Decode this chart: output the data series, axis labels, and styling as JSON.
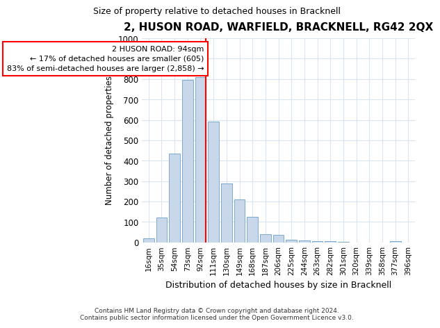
{
  "title": "2, HUSON ROAD, WARFIELD, BRACKNELL, RG42 2QX",
  "subtitle": "Size of property relative to detached houses in Bracknell",
  "xlabel": "Distribution of detached houses by size in Bracknell",
  "ylabel": "Number of detached properties",
  "bar_color": "#c8d8ea",
  "bar_edge_color": "#7aabcf",
  "categories": [
    "16sqm",
    "35sqm",
    "54sqm",
    "73sqm",
    "92sqm",
    "111sqm",
    "130sqm",
    "149sqm",
    "168sqm",
    "187sqm",
    "206sqm",
    "225sqm",
    "244sqm",
    "263sqm",
    "282sqm",
    "301sqm",
    "320sqm",
    "339sqm",
    "358sqm",
    "377sqm",
    "396sqm"
  ],
  "values": [
    18,
    120,
    435,
    795,
    810,
    590,
    290,
    210,
    125,
    40,
    38,
    12,
    10,
    7,
    5,
    2,
    0,
    0,
    0,
    5,
    0
  ],
  "annotation_label": "2 HUSON ROAD: 94sqm",
  "annotation_line1": "← 17% of detached houses are smaller (605)",
  "annotation_line2": "83% of semi-detached houses are larger (2,858) →",
  "red_line_category": "92sqm",
  "ylim": [
    0,
    1000
  ],
  "yticks": [
    0,
    100,
    200,
    300,
    400,
    500,
    600,
    700,
    800,
    900,
    1000
  ],
  "footer_line1": "Contains HM Land Registry data © Crown copyright and database right 2024.",
  "footer_line2": "Contains public sector information licensed under the Open Government Licence v3.0.",
  "background_color": "#ffffff",
  "plot_bg_color": "#ffffff",
  "grid_color": "#d8e4f0"
}
